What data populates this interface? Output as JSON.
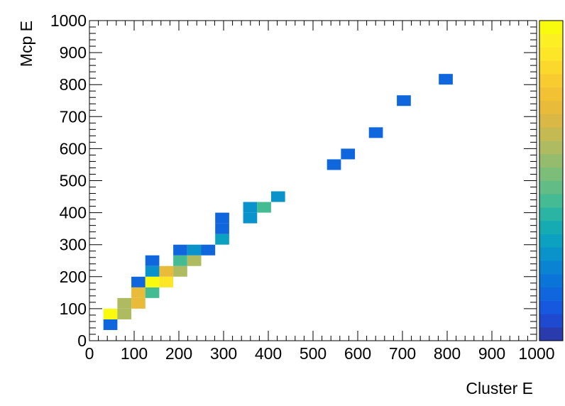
{
  "chart_data": {
    "type": "heatmap",
    "title": "",
    "xlabel": "Cluster E",
    "ylabel": "Mcp E",
    "xlim": [
      0,
      1000
    ],
    "ylim": [
      0,
      1000
    ],
    "xbins": 32,
    "ybins": 30,
    "grid": false,
    "colorbar": true,
    "xticks": [
      "0",
      "100",
      "200",
      "300",
      "400",
      "500",
      "600",
      "700",
      "800",
      "900",
      "1000"
    ],
    "yticks": [
      "0",
      "100",
      "200",
      "300",
      "400",
      "500",
      "600",
      "700",
      "800",
      "900",
      "1000"
    ],
    "palette": [
      "#2a3cad",
      "#1f4ad0",
      "#1658de",
      "#0f66dd",
      "#0b74d8",
      "#0a83d2",
      "#0a92cb",
      "#0ca0c1",
      "#16abb3",
      "#2bb4a3",
      "#45bb93",
      "#61bd85",
      "#7cbd79",
      "#95bc6d",
      "#aebb60",
      "#c5ba52",
      "#d9b845",
      "#e8bb3b",
      "#f2c234",
      "#f8cc30",
      "#fbd92c",
      "#fde627",
      "#fcf024",
      "#f9fb0e"
    ],
    "cells": [
      {
        "x": 46.9,
        "y": 50.0,
        "v": 0.15
      },
      {
        "x": 46.9,
        "y": 83.3,
        "v": 1.0
      },
      {
        "x": 78.1,
        "y": 83.3,
        "v": 0.6
      },
      {
        "x": 78.1,
        "y": 116.7,
        "v": 0.6
      },
      {
        "x": 109.4,
        "y": 116.7,
        "v": 0.75
      },
      {
        "x": 109.4,
        "y": 150.0,
        "v": 0.75
      },
      {
        "x": 140.6,
        "y": 150.0,
        "v": 0.45
      },
      {
        "x": 109.4,
        "y": 183.3,
        "v": 0.15
      },
      {
        "x": 140.6,
        "y": 183.3,
        "v": 1.0
      },
      {
        "x": 171.9,
        "y": 183.3,
        "v": 0.9
      },
      {
        "x": 140.6,
        "y": 216.7,
        "v": 0.25
      },
      {
        "x": 171.9,
        "y": 216.7,
        "v": 0.75
      },
      {
        "x": 203.1,
        "y": 216.7,
        "v": 0.6
      },
      {
        "x": 140.6,
        "y": 250.0,
        "v": 0.15
      },
      {
        "x": 203.1,
        "y": 250.0,
        "v": 0.45
      },
      {
        "x": 234.4,
        "y": 250.0,
        "v": 0.6
      },
      {
        "x": 203.1,
        "y": 283.3,
        "v": 0.15
      },
      {
        "x": 234.4,
        "y": 283.3,
        "v": 0.25
      },
      {
        "x": 265.6,
        "y": 283.3,
        "v": 0.15
      },
      {
        "x": 296.9,
        "y": 316.7,
        "v": 0.3
      },
      {
        "x": 296.9,
        "y": 350.0,
        "v": 0.15
      },
      {
        "x": 296.9,
        "y": 383.3,
        "v": 0.15
      },
      {
        "x": 359.4,
        "y": 383.3,
        "v": 0.25
      },
      {
        "x": 359.4,
        "y": 416.7,
        "v": 0.25
      },
      {
        "x": 390.6,
        "y": 416.7,
        "v": 0.45
      },
      {
        "x": 421.9,
        "y": 450.0,
        "v": 0.25
      },
      {
        "x": 546.9,
        "y": 550.0,
        "v": 0.15
      },
      {
        "x": 578.1,
        "y": 583.3,
        "v": 0.15
      },
      {
        "x": 640.6,
        "y": 650.0,
        "v": 0.15
      },
      {
        "x": 703.1,
        "y": 750.0,
        "v": 0.15
      },
      {
        "x": 796.9,
        "y": 816.7,
        "v": 0.15
      }
    ]
  }
}
